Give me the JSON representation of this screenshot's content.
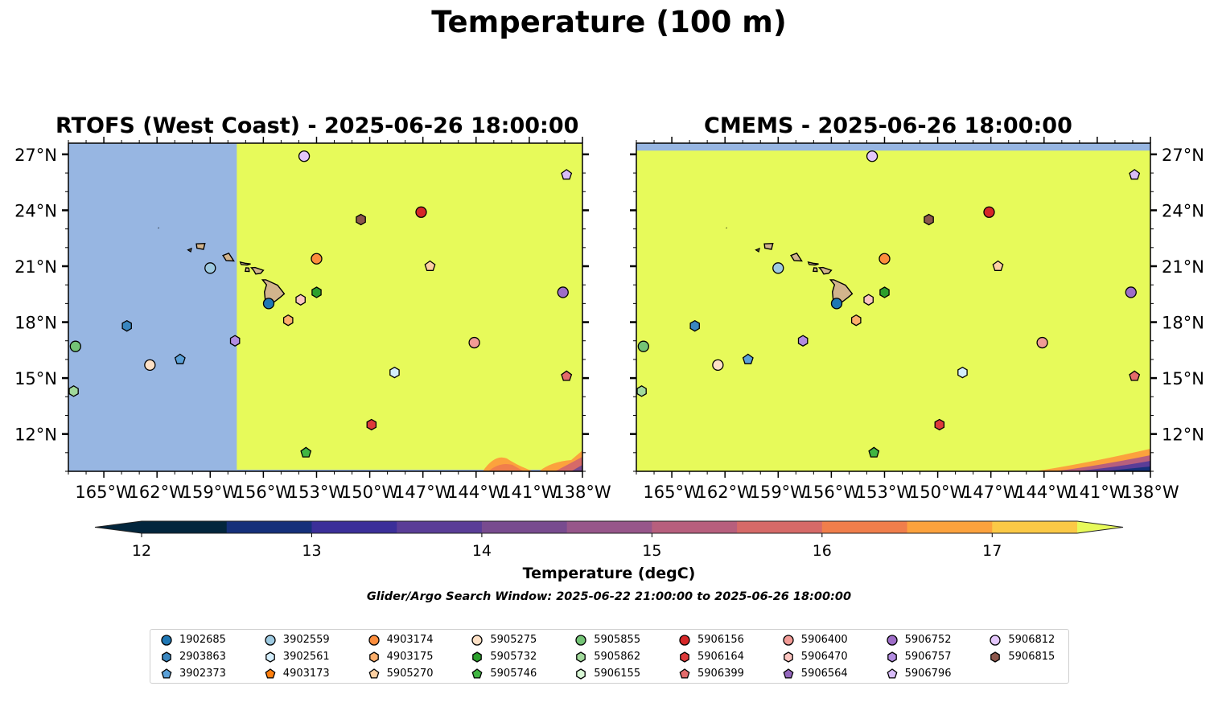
{
  "title": "Temperature (100 m)",
  "panels": [
    {
      "title": "RTOFS (West Coast) - 2025-06-26 18:00:00",
      "y_axis_side": "left",
      "nodata_left_lon": -157.5,
      "nodata_top_lat": null
    },
    {
      "title": "CMEMS - 2025-06-26 18:00:00",
      "y_axis_side": "right",
      "nodata_left_lon": null,
      "nodata_top_lat": 27.2
    }
  ],
  "colorbar": {
    "label": "Temperature (degC)",
    "ticks": [
      "12",
      "13",
      "14",
      "15",
      "16",
      "17"
    ],
    "colors": [
      "#03263d",
      "#15307a",
      "#3b2f99",
      "#5a3d97",
      "#784b8f",
      "#97568a",
      "#b75f7d",
      "#d66a68",
      "#f07e4b",
      "#fca23d",
      "#fbc946"
    ],
    "over_color": "#e7fa5a",
    "under_color": "#03263d"
  },
  "subtitle": "Glider/Argo Search Window: 2025-06-22 21:00:00 to 2025-06-26 18:00:00",
  "chart_data": {
    "type": "scatter",
    "title": "Temperature (100 m)",
    "xlim": [
      -167,
      -138
    ],
    "ylim": [
      10,
      27.6
    ],
    "x_ticks": [
      "165°W",
      "162°W",
      "159°W",
      "156°W",
      "153°W",
      "150°W",
      "147°W",
      "144°W",
      "141°W",
      "138°W"
    ],
    "y_ticks": [
      "27°N",
      "24°N",
      "21°N",
      "18°N",
      "15°N",
      "12°N"
    ],
    "legend_placement": "lower center",
    "series": [
      {
        "name": "1902685",
        "marker": "circle",
        "color": "#1f77b4",
        "lon": -155.7,
        "lat": 19.0
      },
      {
        "name": "2903863",
        "marker": "hexagon",
        "color": "#3a87c0",
        "lon": -163.7,
        "lat": 17.8
      },
      {
        "name": "3902373",
        "marker": "pentagon",
        "color": "#5aa0d8",
        "lon": -160.7,
        "lat": 16.0
      },
      {
        "name": "3902559",
        "marker": "circle",
        "color": "#9ecae1",
        "lon": -159.0,
        "lat": 20.9
      },
      {
        "name": "3902561",
        "marker": "hexagon",
        "color": "#d4eefc",
        "lon": -148.6,
        "lat": 15.3
      },
      {
        "name": "4903173",
        "marker": "pentagon",
        "color": "#ff7f0e",
        "lon": null,
        "lat": null
      },
      {
        "name": "4903174",
        "marker": "circle",
        "color": "#fd8d3c",
        "lon": -153.0,
        "lat": 21.4
      },
      {
        "name": "4903175",
        "marker": "hexagon",
        "color": "#fdae6b",
        "lon": -154.6,
        "lat": 18.1
      },
      {
        "name": "5905270",
        "marker": "pentagon",
        "color": "#fdd0a2",
        "lon": -146.6,
        "lat": 21.0
      },
      {
        "name": "5905275",
        "marker": "circle",
        "color": "#fde0c5",
        "lon": -162.4,
        "lat": 15.7
      },
      {
        "name": "5905732",
        "marker": "hexagon",
        "color": "#2ca02c",
        "lon": -153.0,
        "lat": 19.6
      },
      {
        "name": "5905746",
        "marker": "pentagon",
        "color": "#41b642",
        "lon": -153.6,
        "lat": 11.0
      },
      {
        "name": "5905855",
        "marker": "circle",
        "color": "#74c476",
        "lon": -166.6,
        "lat": 16.7
      },
      {
        "name": "5905862",
        "marker": "hexagon",
        "color": "#a1d99b",
        "lon": -166.7,
        "lat": 14.3
      },
      {
        "name": "5906155",
        "marker": "hexagon",
        "color": "#d9f8d6",
        "lon": null,
        "lat": null
      },
      {
        "name": "5906156",
        "marker": "circle",
        "color": "#d62728",
        "lon": -147.1,
        "lat": 23.9
      },
      {
        "name": "5906164",
        "marker": "hexagon",
        "color": "#de3b3b",
        "lon": -149.9,
        "lat": 12.5
      },
      {
        "name": "5906399",
        "marker": "pentagon",
        "color": "#e36b6b",
        "lon": -138.9,
        "lat": 15.1
      },
      {
        "name": "5906400",
        "marker": "circle",
        "color": "#f29b96",
        "lon": -144.1,
        "lat": 16.9
      },
      {
        "name": "5906470",
        "marker": "hexagon",
        "color": "#fcc5c0",
        "lon": -153.9,
        "lat": 19.2
      },
      {
        "name": "5906564",
        "marker": "pentagon",
        "color": "#9467bd",
        "lon": null,
        "lat": null
      },
      {
        "name": "5906752",
        "marker": "circle",
        "color": "#9e6dc8",
        "lon": -139.1,
        "lat": 19.6
      },
      {
        "name": "5906757",
        "marker": "hexagon",
        "color": "#b28ce0",
        "lon": -157.6,
        "lat": 17.0
      },
      {
        "name": "5906796",
        "marker": "pentagon",
        "color": "#d8bcf9",
        "lon": -138.9,
        "lat": 25.9
      },
      {
        "name": "5906812",
        "marker": "circle",
        "color": "#e3c6fb",
        "lon": -153.7,
        "lat": 26.9
      },
      {
        "name": "5906815",
        "marker": "hexagon",
        "color": "#8c564b",
        "lon": -150.5,
        "lat": 23.5
      }
    ]
  }
}
